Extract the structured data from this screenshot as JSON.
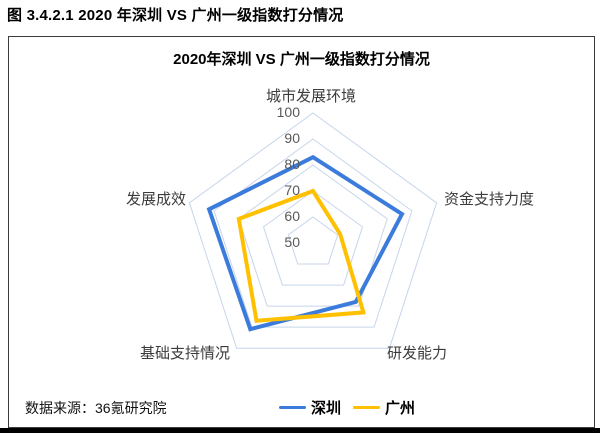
{
  "figure": {
    "caption": "图 3.4.2.1 2020 年深圳 VS 广州一级指数打分情况"
  },
  "chart": {
    "title": "2020年深圳 VS 广州一级指数打分情况"
  },
  "chart_data": {
    "type": "radar",
    "title": "2020年深圳 VS 广州一级指数打分情况",
    "categories": [
      "城市发展环境",
      "资金支持力度",
      "研发能力",
      "基础支持情况",
      "发展成效"
    ],
    "series": [
      {
        "name": "深圳",
        "color": "#3b7bdb",
        "values": [
          83,
          86,
          78,
          91,
          92
        ]
      },
      {
        "name": "广州",
        "color": "#ffc000",
        "values": [
          70,
          61,
          83,
          87,
          80
        ]
      }
    ],
    "axis": {
      "min": 50,
      "max": 100,
      "step": 10,
      "tick_labels": [
        "100",
        "90",
        "80",
        "70",
        "60",
        "50"
      ]
    },
    "grid_color": "#c7d5ea",
    "grid": "pentagonal rings, no radial spokes",
    "legend_position": "bottom"
  },
  "footer": {
    "source": "数据来源：36氪研究院"
  }
}
